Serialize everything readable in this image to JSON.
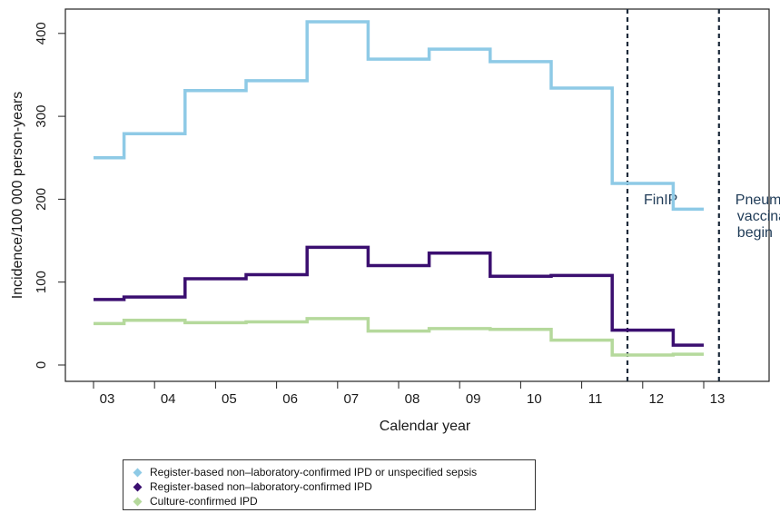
{
  "chart_data": {
    "type": "line",
    "step": true,
    "title": "",
    "xlabel": "Calendar year",
    "ylabel": "Incidence/100 000 person-years",
    "categories": [
      "03",
      "04",
      "05",
      "06",
      "07",
      "08",
      "09",
      "10",
      "11",
      "12",
      "13"
    ],
    "ylim": [
      0,
      420
    ],
    "yticks": [
      0,
      100,
      200,
      300,
      400
    ],
    "grid": false,
    "series": [
      {
        "name": "Register-based non–laboratory-confirmed IPD or unspecified sepsis",
        "color": "#8ecae6",
        "values": [
          250,
          279,
          331,
          343,
          414,
          369,
          381,
          366,
          334,
          219,
          188
        ]
      },
      {
        "name": "Register-based non–laboratory-confirmed IPD",
        "color": "#3b0f70",
        "values": [
          79,
          82,
          104,
          109,
          142,
          120,
          135,
          107,
          108,
          42,
          24
        ]
      },
      {
        "name": "Culture-confirmed IPD",
        "color": "#b5d99c",
        "values": [
          50,
          54,
          51,
          52,
          56,
          41,
          44,
          43,
          30,
          12,
          13
        ]
      }
    ],
    "vlines": [
      {
        "x": 8.75,
        "label": [
          "FinIP"
        ]
      },
      {
        "x": 10.25,
        "label": [
          "Pneumococcal",
          "vaccinations",
          "begin"
        ]
      }
    ],
    "legend_position": "bottom-left"
  }
}
